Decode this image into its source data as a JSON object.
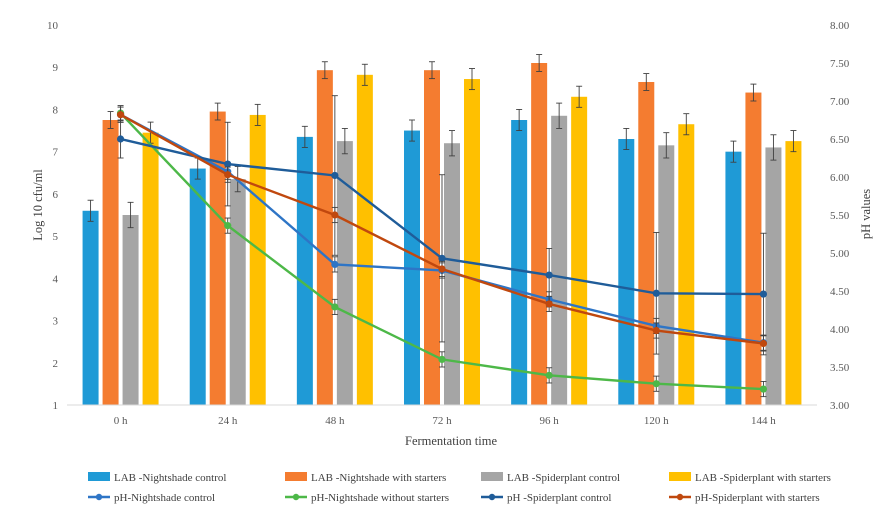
{
  "chart_data": {
    "type": "bar",
    "categories": [
      "0 h",
      "24 h",
      "48 h",
      "72 h",
      "96 h",
      "120 h",
      "144 h"
    ],
    "xlabel": "Fermentation time",
    "ylabel": "Log 10 cfu/ml",
    "y2label": "pH values",
    "ylim": [
      1,
      10
    ],
    "y2lim": [
      3.0,
      8.0
    ],
    "y_ticks": [
      "1",
      "2",
      "3",
      "4",
      "5",
      "6",
      "7",
      "8",
      "9",
      "10"
    ],
    "y2_ticks": [
      "3.00",
      "3.50",
      "4.00",
      "4.50",
      "5.00",
      "5.50",
      "6.00",
      "6.50",
      "7.00",
      "7.50",
      "8.00"
    ],
    "grid": false,
    "legend_position": "bottom",
    "bar_series": [
      {
        "name": "LAB -Nightshade control",
        "color": "#1f9ad6",
        "values": [
          5.6,
          6.6,
          7.35,
          7.5,
          7.75,
          7.3,
          7.0
        ],
        "errors": [
          0.25,
          0.25,
          0.25,
          0.25,
          0.25,
          0.25,
          0.25
        ]
      },
      {
        "name": "LAB -Nightshade with starters",
        "color": "#f47c30",
        "values": [
          7.75,
          7.95,
          8.93,
          8.93,
          9.1,
          8.65,
          8.4
        ],
        "errors": [
          0.2,
          0.2,
          0.2,
          0.2,
          0.2,
          0.2,
          0.2
        ]
      },
      {
        "name": "LAB -Spiderplant control",
        "color": "#a5a5a5",
        "values": [
          5.5,
          6.35,
          7.25,
          7.2,
          7.85,
          7.15,
          7.1
        ],
        "errors": [
          0.3,
          0.3,
          0.3,
          0.3,
          0.3,
          0.3,
          0.3
        ]
      },
      {
        "name": "LAB -Spiderplant with starters",
        "color": "#ffc000",
        "values": [
          7.45,
          7.87,
          8.82,
          8.72,
          8.3,
          7.65,
          7.25
        ],
        "errors": [
          0.25,
          0.25,
          0.25,
          0.25,
          0.25,
          0.25,
          0.25
        ]
      }
    ],
    "line_series": [
      {
        "name": "pH-Nightshade control",
        "color": "#2e75c6",
        "values": [
          6.82,
          6.07,
          4.85,
          4.77,
          4.39,
          4.04,
          3.82
        ],
        "errors": [
          0.1,
          0.1,
          0.1,
          0.1,
          0.1,
          0.1,
          0.1
        ]
      },
      {
        "name": "pH-Nightshade without starters",
        "color": "#4db848",
        "values": [
          6.84,
          5.36,
          4.29,
          3.6,
          3.39,
          3.28,
          3.21
        ],
        "errors": [
          0.1,
          0.1,
          0.1,
          0.1,
          0.1,
          0.1,
          0.1
        ]
      },
      {
        "name": "pH -Spiderplant control",
        "color": "#1f5c99",
        "values": [
          6.5,
          6.17,
          6.02,
          4.93,
          4.71,
          4.47,
          4.46
        ],
        "errors": [
          0.25,
          0.55,
          1.05,
          1.1,
          0.35,
          0.8,
          0.8
        ]
      },
      {
        "name": "pH-Spiderplant with starters",
        "color": "#c0480e",
        "values": [
          6.82,
          6.03,
          5.5,
          4.79,
          4.33,
          3.98,
          3.81
        ],
        "errors": [
          0.1,
          0.1,
          0.1,
          0.1,
          0.1,
          0.1,
          0.1
        ]
      }
    ]
  }
}
